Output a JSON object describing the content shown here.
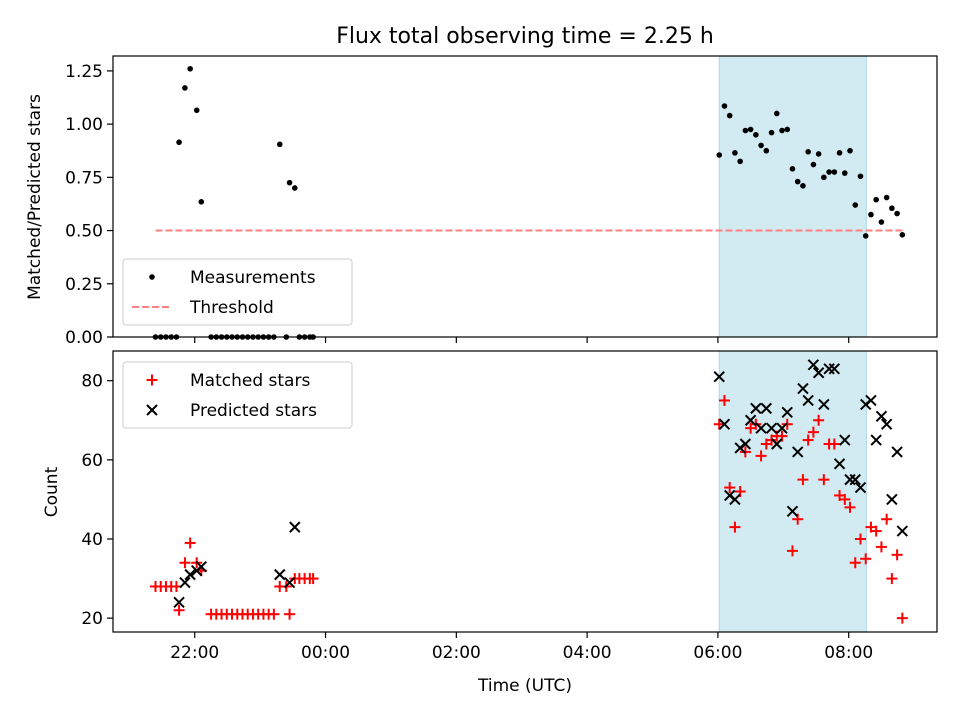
{
  "chart_data": {
    "type": "scatter",
    "title": "Flux total observing time = 2.25 h",
    "xlabel": "Time (UTC)",
    "x_unit": "hours relative to 00:00 UTC",
    "xlim": [
      -3.25,
      9.35
    ],
    "x_ticks": [
      {
        "value": -2,
        "label": "22:00"
      },
      {
        "value": 0,
        "label": "00:00"
      },
      {
        "value": 2,
        "label": "02:00"
      },
      {
        "value": 4,
        "label": "04:00"
      },
      {
        "value": 6,
        "label": "06:00"
      },
      {
        "value": 8,
        "label": "08:00"
      }
    ],
    "shaded_span": {
      "x_start": 6.02,
      "x_end": 8.27,
      "color": "#add8e6"
    },
    "panels": [
      {
        "ylabel": "Matched/Predicted stars",
        "ylim": [
          0,
          1.32
        ],
        "y_ticks": [
          0.0,
          0.25,
          0.5,
          0.75,
          1.0,
          1.25
        ],
        "y_tick_labels": [
          "0.00",
          "0.25",
          "0.50",
          "0.75",
          "1.00",
          "1.25"
        ],
        "legend_position": "lower-left",
        "series": [
          {
            "name": "Measurements",
            "marker": "dot",
            "color": "#000000",
            "points": [
              [
                -2.6,
                0
              ],
              [
                -2.52,
                0
              ],
              [
                -2.44,
                0
              ],
              [
                -2.36,
                0
              ],
              [
                -2.28,
                0
              ],
              [
                -2.24,
                0.915
              ],
              [
                -2.15,
                1.17
              ],
              [
                -2.07,
                1.26
              ],
              [
                -1.97,
                1.065
              ],
              [
                -1.9,
                0.635
              ],
              [
                -1.75,
                0
              ],
              [
                -1.67,
                0
              ],
              [
                -1.59,
                0
              ],
              [
                -1.51,
                0
              ],
              [
                -1.43,
                0
              ],
              [
                -1.35,
                0
              ],
              [
                -1.27,
                0
              ],
              [
                -1.19,
                0
              ],
              [
                -1.11,
                0
              ],
              [
                -1.03,
                0
              ],
              [
                -0.95,
                0
              ],
              [
                -0.87,
                0
              ],
              [
                -0.79,
                0
              ],
              [
                -0.7,
                0.905
              ],
              [
                -0.6,
                0
              ],
              [
                -0.55,
                0.725
              ],
              [
                -0.47,
                0.7
              ],
              [
                -0.4,
                0
              ],
              [
                -0.32,
                0
              ],
              [
                -0.24,
                0
              ],
              [
                -0.19,
                0
              ],
              [
                6.02,
                0.855
              ],
              [
                6.1,
                1.085
              ],
              [
                6.18,
                1.04
              ],
              [
                6.26,
                0.865
              ],
              [
                6.34,
                0.825
              ],
              [
                6.42,
                0.97
              ],
              [
                6.5,
                0.975
              ],
              [
                6.58,
                0.95
              ],
              [
                6.66,
                0.9
              ],
              [
                6.74,
                0.875
              ],
              [
                6.82,
                0.96
              ],
              [
                6.9,
                1.05
              ],
              [
                6.98,
                0.97
              ],
              [
                7.06,
                0.975
              ],
              [
                7.14,
                0.79
              ],
              [
                7.22,
                0.73
              ],
              [
                7.3,
                0.71
              ],
              [
                7.38,
                0.87
              ],
              [
                7.46,
                0.81
              ],
              [
                7.54,
                0.86
              ],
              [
                7.62,
                0.75
              ],
              [
                7.7,
                0.775
              ],
              [
                7.78,
                0.775
              ],
              [
                7.86,
                0.865
              ],
              [
                7.94,
                0.77
              ],
              [
                8.02,
                0.875
              ],
              [
                8.1,
                0.62
              ],
              [
                8.18,
                0.755
              ],
              [
                8.26,
                0.475
              ],
              [
                8.34,
                0.575
              ],
              [
                8.42,
                0.645
              ],
              [
                8.5,
                0.54
              ],
              [
                8.58,
                0.655
              ],
              [
                8.66,
                0.605
              ],
              [
                8.74,
                0.58
              ],
              [
                8.82,
                0.48
              ]
            ]
          },
          {
            "name": "Threshold",
            "marker": "dashed-line",
            "color": "#ff8080",
            "points": [
              [
                -2.6,
                0.5
              ],
              [
                8.82,
                0.5
              ]
            ]
          }
        ]
      },
      {
        "ylabel": "Count",
        "ylim": [
          16.5,
          87.5
        ],
        "y_ticks": [
          20,
          40,
          60,
          80
        ],
        "y_tick_labels": [
          "20",
          "40",
          "60",
          "80"
        ],
        "legend_position": "upper-left",
        "series": [
          {
            "name": "Matched stars",
            "marker": "plus",
            "color": "#ff0000",
            "points": [
              [
                -2.6,
                28
              ],
              [
                -2.52,
                28
              ],
              [
                -2.44,
                28
              ],
              [
                -2.36,
                28
              ],
              [
                -2.28,
                28
              ],
              [
                -2.24,
                22
              ],
              [
                -2.15,
                34
              ],
              [
                -2.07,
                39
              ],
              [
                -1.97,
                34
              ],
              [
                -1.9,
                32
              ],
              [
                -1.75,
                21
              ],
              [
                -1.67,
                21
              ],
              [
                -1.59,
                21
              ],
              [
                -1.51,
                21
              ],
              [
                -1.43,
                21
              ],
              [
                -1.35,
                21
              ],
              [
                -1.27,
                21
              ],
              [
                -1.19,
                21
              ],
              [
                -1.11,
                21
              ],
              [
                -1.03,
                21
              ],
              [
                -0.95,
                21
              ],
              [
                -0.87,
                21
              ],
              [
                -0.79,
                21
              ],
              [
                -0.7,
                28
              ],
              [
                -0.6,
                28
              ],
              [
                -0.55,
                21
              ],
              [
                -0.47,
                30
              ],
              [
                -0.4,
                30
              ],
              [
                -0.32,
                30
              ],
              [
                -0.24,
                30
              ],
              [
                -0.19,
                30
              ],
              [
                6.02,
                69
              ],
              [
                6.1,
                75
              ],
              [
                6.18,
                53
              ],
              [
                6.26,
                43
              ],
              [
                6.34,
                52
              ],
              [
                6.42,
                62
              ],
              [
                6.5,
                68
              ],
              [
                6.58,
                69
              ],
              [
                6.66,
                61
              ],
              [
                6.74,
                64
              ],
              [
                6.82,
                65
              ],
              [
                6.9,
                66
              ],
              [
                6.98,
                66
              ],
              [
                7.06,
                69
              ],
              [
                7.14,
                37
              ],
              [
                7.22,
                45
              ],
              [
                7.3,
                55
              ],
              [
                7.38,
                65
              ],
              [
                7.46,
                67
              ],
              [
                7.54,
                70
              ],
              [
                7.62,
                55
              ],
              [
                7.7,
                64
              ],
              [
                7.78,
                64
              ],
              [
                7.86,
                51
              ],
              [
                7.94,
                50
              ],
              [
                8.02,
                48
              ],
              [
                8.1,
                34
              ],
              [
                8.18,
                40
              ],
              [
                8.26,
                35
              ],
              [
                8.34,
                43
              ],
              [
                8.42,
                42
              ],
              [
                8.5,
                38
              ],
              [
                8.58,
                45
              ],
              [
                8.66,
                30
              ],
              [
                8.74,
                36
              ],
              [
                8.82,
                20
              ]
            ]
          },
          {
            "name": "Predicted stars",
            "marker": "x",
            "color": "#000000",
            "points": [
              [
                -2.24,
                24
              ],
              [
                -2.15,
                29
              ],
              [
                -2.07,
                31
              ],
              [
                -1.97,
                32
              ],
              [
                -1.9,
                33
              ],
              [
                -0.7,
                31
              ],
              [
                -0.55,
                29
              ],
              [
                -0.47,
                43
              ],
              [
                6.02,
                81
              ],
              [
                6.1,
                69
              ],
              [
                6.18,
                51
              ],
              [
                6.26,
                50
              ],
              [
                6.34,
                63
              ],
              [
                6.42,
                64
              ],
              [
                6.5,
                70
              ],
              [
                6.58,
                73
              ],
              [
                6.66,
                68
              ],
              [
                6.74,
                73
              ],
              [
                6.82,
                68
              ],
              [
                6.9,
                64
              ],
              [
                6.98,
                68
              ],
              [
                7.06,
                72
              ],
              [
                7.14,
                47
              ],
              [
                7.22,
                62
              ],
              [
                7.3,
                78
              ],
              [
                7.38,
                75
              ],
              [
                7.46,
                84
              ],
              [
                7.54,
                82
              ],
              [
                7.62,
                74
              ],
              [
                7.7,
                83
              ],
              [
                7.78,
                83
              ],
              [
                7.86,
                59
              ],
              [
                7.94,
                65
              ],
              [
                8.02,
                55
              ],
              [
                8.1,
                55
              ],
              [
                8.18,
                53
              ],
              [
                8.26,
                74
              ],
              [
                8.34,
                75
              ],
              [
                8.42,
                65
              ],
              [
                8.5,
                71
              ],
              [
                8.58,
                69
              ],
              [
                8.66,
                50
              ],
              [
                8.74,
                62
              ],
              [
                8.82,
                42
              ]
            ]
          }
        ]
      }
    ]
  }
}
